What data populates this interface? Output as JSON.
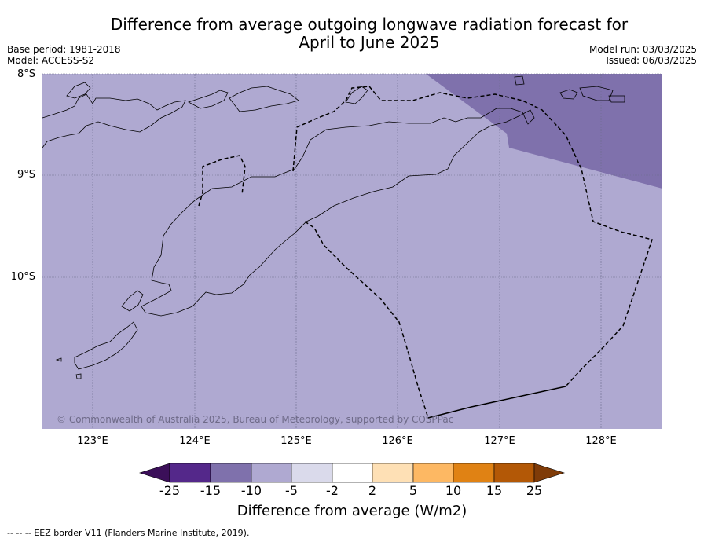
{
  "title_line1": "Difference from average outgoing longwave radiation forecast for",
  "title_line2": "April to June 2025",
  "base_period": "Base period: 1981-2018",
  "model": "Model: ACCESS-S2",
  "model_run": "Model run: 03/03/2025",
  "issued": "Issued: 06/03/2025",
  "lat_labels": [
    "8°S",
    "9°S",
    "10°S"
  ],
  "lon_labels": [
    "123°E",
    "124°E",
    "125°E",
    "126°E",
    "127°E",
    "128°E"
  ],
  "copyright": "© Commonwealth of Australia 2025, Bureau of Meteorology, supported by COSPPac",
  "colorbar": {
    "ticks": [
      "-25",
      "-15",
      "-10",
      "-5",
      "-2",
      "2",
      "5",
      "10",
      "15",
      "25"
    ],
    "colors": [
      "#3b0f59",
      "#54288a",
      "#7f71ac",
      "#afa9d1",
      "#dadaeb",
      "#ffffff",
      "#fee0b5",
      "#fdb863",
      "#e08214",
      "#b35806",
      "#7f3b08"
    ],
    "title": "Difference from average (W/m2)"
  },
  "footnote": "-- -- -- EEZ border V11 (Flanders Marine Institute, 2019).",
  "map": {
    "background_category": "-10 to -5",
    "background_color": "#afa9d1",
    "northeast_category": "-15 to -10",
    "northeast_color": "#7f71ac"
  }
}
